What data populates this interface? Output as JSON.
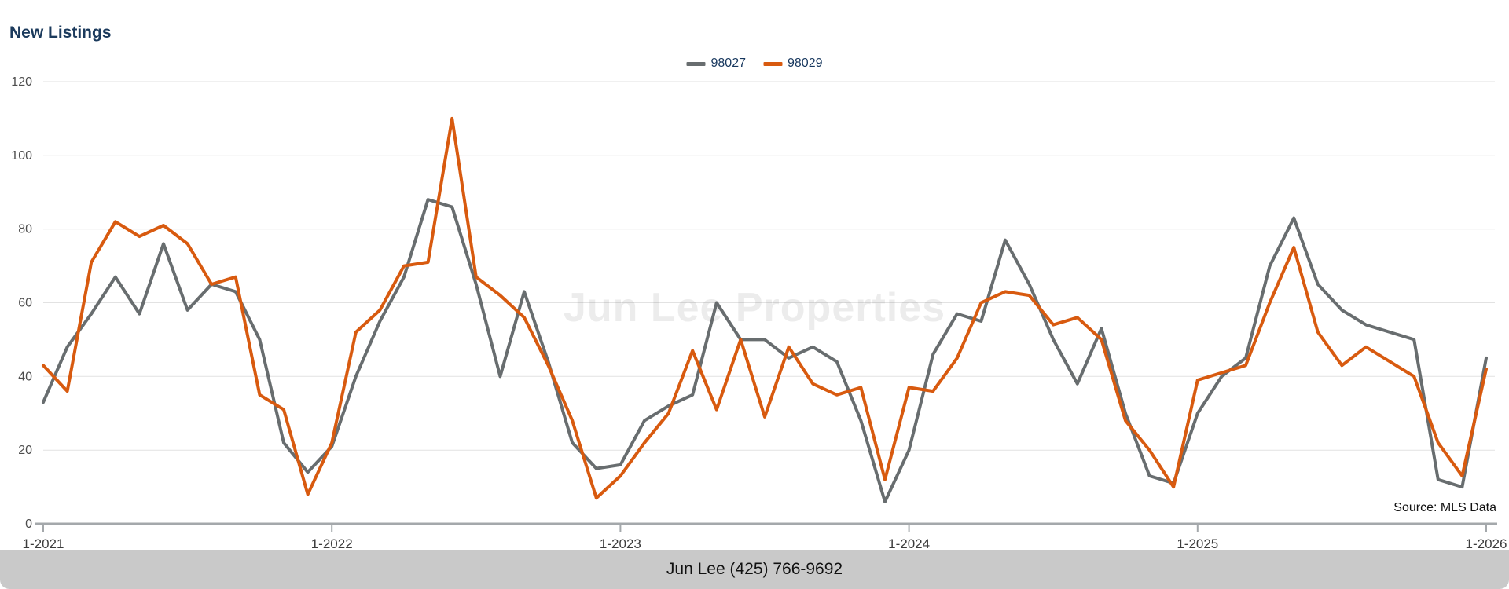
{
  "page": {
    "title": "New Listings",
    "watermark": "Jun Lee Properties",
    "source_note": "Source: MLS Data",
    "footer_text": "Jun Lee (425) 766-9692"
  },
  "colors": {
    "title_text": "#1b3a5c",
    "legend_text": "#17375e",
    "series_98027": "#686d6f",
    "series_98029": "#d85a0f",
    "grid_line": "#e2e2e2",
    "axis_line": "#a4a8ab",
    "footer_bg": "#c9c9c9"
  },
  "chart_data": {
    "type": "line",
    "title": "New Listings",
    "xlabel": "",
    "ylabel": "",
    "ylim": [
      0,
      120
    ],
    "y_ticks": [
      0,
      20,
      40,
      60,
      80,
      100,
      120
    ],
    "grid": "horizontal",
    "legend_position": "top-center",
    "x_ticks": [
      {
        "index": 0,
        "label": "1-2021"
      },
      {
        "index": 12,
        "label": "1-2022"
      },
      {
        "index": 24,
        "label": "1-2023"
      },
      {
        "index": 36,
        "label": "1-2024"
      },
      {
        "index": 48,
        "label": "1-2025"
      },
      {
        "index": 60,
        "label": "1-2026"
      }
    ],
    "months": [
      "2021-01",
      "2021-02",
      "2021-03",
      "2021-04",
      "2021-05",
      "2021-06",
      "2021-07",
      "2021-08",
      "2021-09",
      "2021-10",
      "2021-11",
      "2021-12",
      "2022-01",
      "2022-02",
      "2022-03",
      "2022-04",
      "2022-05",
      "2022-06",
      "2022-07",
      "2022-08",
      "2022-09",
      "2022-10",
      "2022-11",
      "2022-12",
      "2023-01",
      "2023-02",
      "2023-03",
      "2023-04",
      "2023-05",
      "2023-06",
      "2023-07",
      "2023-08",
      "2023-09",
      "2023-10",
      "2023-11",
      "2023-12",
      "2024-01",
      "2024-02",
      "2024-03",
      "2024-04",
      "2024-05",
      "2024-06",
      "2024-07",
      "2024-08",
      "2024-09",
      "2024-10",
      "2024-11",
      "2024-12",
      "2025-01",
      "2025-02",
      "2025-03",
      "2025-04",
      "2025-05",
      "2025-06",
      "2025-07",
      "2025-08",
      "2025-09",
      "2025-10",
      "2025-11",
      "2025-12",
      "2026-01"
    ],
    "series": [
      {
        "name": "98027",
        "color": "#686d6f",
        "values": [
          33,
          48,
          57,
          67,
          57,
          76,
          58,
          65,
          63,
          50,
          22,
          14,
          21,
          40,
          55,
          67,
          88,
          86,
          65,
          40,
          63,
          44,
          22,
          15,
          16,
          28,
          32,
          35,
          60,
          50,
          50,
          45,
          48,
          44,
          28,
          6,
          20,
          46,
          57,
          55,
          77,
          65,
          50,
          38,
          53,
          30,
          13,
          11,
          30,
          40,
          45,
          70,
          83,
          65,
          58,
          54,
          52,
          50,
          12,
          10,
          45
        ]
      },
      {
        "name": "98029",
        "color": "#d85a0f",
        "values": [
          43,
          36,
          71,
          82,
          78,
          81,
          76,
          65,
          67,
          35,
          31,
          8,
          22,
          52,
          58,
          70,
          71,
          110,
          67,
          62,
          56,
          43,
          28,
          7,
          13,
          22,
          30,
          47,
          31,
          50,
          29,
          48,
          38,
          35,
          37,
          12,
          37,
          36,
          45,
          60,
          63,
          62,
          54,
          56,
          50,
          28,
          20,
          10,
          39,
          41,
          43,
          60,
          75,
          52,
          43,
          48,
          44,
          40,
          22,
          13,
          42
        ]
      }
    ]
  }
}
